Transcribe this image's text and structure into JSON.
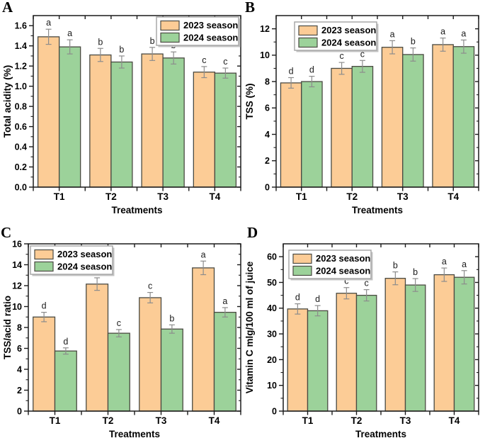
{
  "figure": {
    "description": "Four-panel bar chart of fruit quality parameters by treatment for two seasons"
  },
  "colors": {
    "series_2023": "#FCCC96",
    "series_2024": "#9CD29A",
    "bar_border": "#4a4a42",
    "error_bar": "#8c8c8c",
    "axis": "#1a1a1a",
    "legend_border": "#a8a8a8",
    "legend_shadow": "#c4c4c4",
    "sig_letter": "#1a1a1a"
  },
  "legend": {
    "items": [
      {
        "label": "2023 season",
        "color_key": "series_2023"
      },
      {
        "label": "2024 season",
        "color_key": "series_2024"
      }
    ]
  },
  "chart_data": [
    {
      "panel": "A",
      "type": "bar",
      "title": "",
      "xlabel": "Treatments",
      "ylabel": "Total acidity (%)",
      "categories": [
        "T1",
        "T2",
        "T3",
        "T4"
      ],
      "ylim": [
        0,
        1.7
      ],
      "ytick_labels": [
        "0.0",
        "0.2",
        "0.4",
        "0.6",
        "0.8",
        "1.0",
        "1.2",
        "1.4",
        "1.6"
      ],
      "yminor_step": 0.1,
      "grid": false,
      "legend_position": "top-right",
      "series": [
        {
          "name": "2023 season",
          "values": [
            1.49,
            1.31,
            1.32,
            1.14
          ],
          "errors": [
            0.075,
            0.065,
            0.065,
            0.055
          ],
          "sig_letters": [
            "a",
            "b",
            "b",
            "c"
          ]
        },
        {
          "name": "2024 season",
          "values": [
            1.39,
            1.24,
            1.28,
            1.13
          ],
          "errors": [
            0.07,
            0.06,
            0.06,
            0.05
          ],
          "sig_letters": [
            "a",
            "b",
            "b",
            "c"
          ]
        }
      ]
    },
    {
      "panel": "B",
      "type": "bar",
      "title": "",
      "xlabel": "Treatments",
      "ylabel": "TSS (%)",
      "categories": [
        "T1",
        "T2",
        "T3",
        "T4"
      ],
      "ylim": [
        0,
        13
      ],
      "ytick_labels": [
        "0",
        "2",
        "4",
        "6",
        "8",
        "10",
        "12"
      ],
      "yminor_step": 1,
      "grid": false,
      "legend_position": "top-left",
      "series": [
        {
          "name": "2023 season",
          "values": [
            7.9,
            9.0,
            10.6,
            10.8
          ],
          "errors": [
            0.4,
            0.45,
            0.5,
            0.5
          ],
          "sig_letters": [
            "d",
            "c",
            "a",
            "a"
          ]
        },
        {
          "name": "2024 season",
          "values": [
            8.0,
            9.15,
            10.05,
            10.65
          ],
          "errors": [
            0.4,
            0.45,
            0.5,
            0.5
          ],
          "sig_letters": [
            "d",
            "c",
            "b",
            "a"
          ]
        }
      ]
    },
    {
      "panel": "C",
      "type": "bar",
      "title": "",
      "xlabel": "Treatments",
      "ylabel": "TSS/acid ratio",
      "categories": [
        "T1",
        "T2",
        "T3",
        "T4"
      ],
      "ylim": [
        0,
        16
      ],
      "ytick_labels": [
        "0",
        "2",
        "4",
        "6",
        "8",
        "10",
        "12",
        "14",
        "16"
      ],
      "yminor_step": 1,
      "grid": false,
      "legend_position": "top-left",
      "series": [
        {
          "name": "2023 season",
          "values": [
            9.0,
            12.15,
            10.85,
            13.7
          ],
          "errors": [
            0.45,
            0.6,
            0.5,
            0.65
          ],
          "sig_letters": [
            "d",
            "b",
            "c",
            "a"
          ]
        },
        {
          "name": "2024 season",
          "values": [
            5.75,
            7.45,
            7.85,
            9.45
          ],
          "errors": [
            0.3,
            0.35,
            0.4,
            0.45
          ],
          "sig_letters": [
            "d",
            "c",
            "b",
            "a"
          ]
        }
      ]
    },
    {
      "panel": "D",
      "type": "bar",
      "title": "",
      "xlabel": "Treatments",
      "ylabel": "Vitamin C  mlg/100 ml of juice",
      "categories": [
        "T1",
        "T2",
        "T3",
        "T4"
      ],
      "ylim": [
        0,
        65
      ],
      "ytick_labels": [
        "0",
        "10",
        "20",
        "30",
        "40",
        "50",
        "60"
      ],
      "yminor_step": 5,
      "grid": false,
      "legend_position": "top-left",
      "series": [
        {
          "name": "2023 season",
          "values": [
            39.7,
            45.8,
            51.6,
            53.0
          ],
          "errors": [
            2.0,
            2.2,
            2.5,
            2.6
          ],
          "sig_letters": [
            "d",
            "c",
            "b",
            "a"
          ]
        },
        {
          "name": "2024 season",
          "values": [
            39.0,
            45.0,
            49.0,
            52.0
          ],
          "errors": [
            2.0,
            2.2,
            2.5,
            2.6
          ],
          "sig_letters": [
            "d",
            "c",
            "b",
            "a"
          ]
        }
      ]
    }
  ]
}
